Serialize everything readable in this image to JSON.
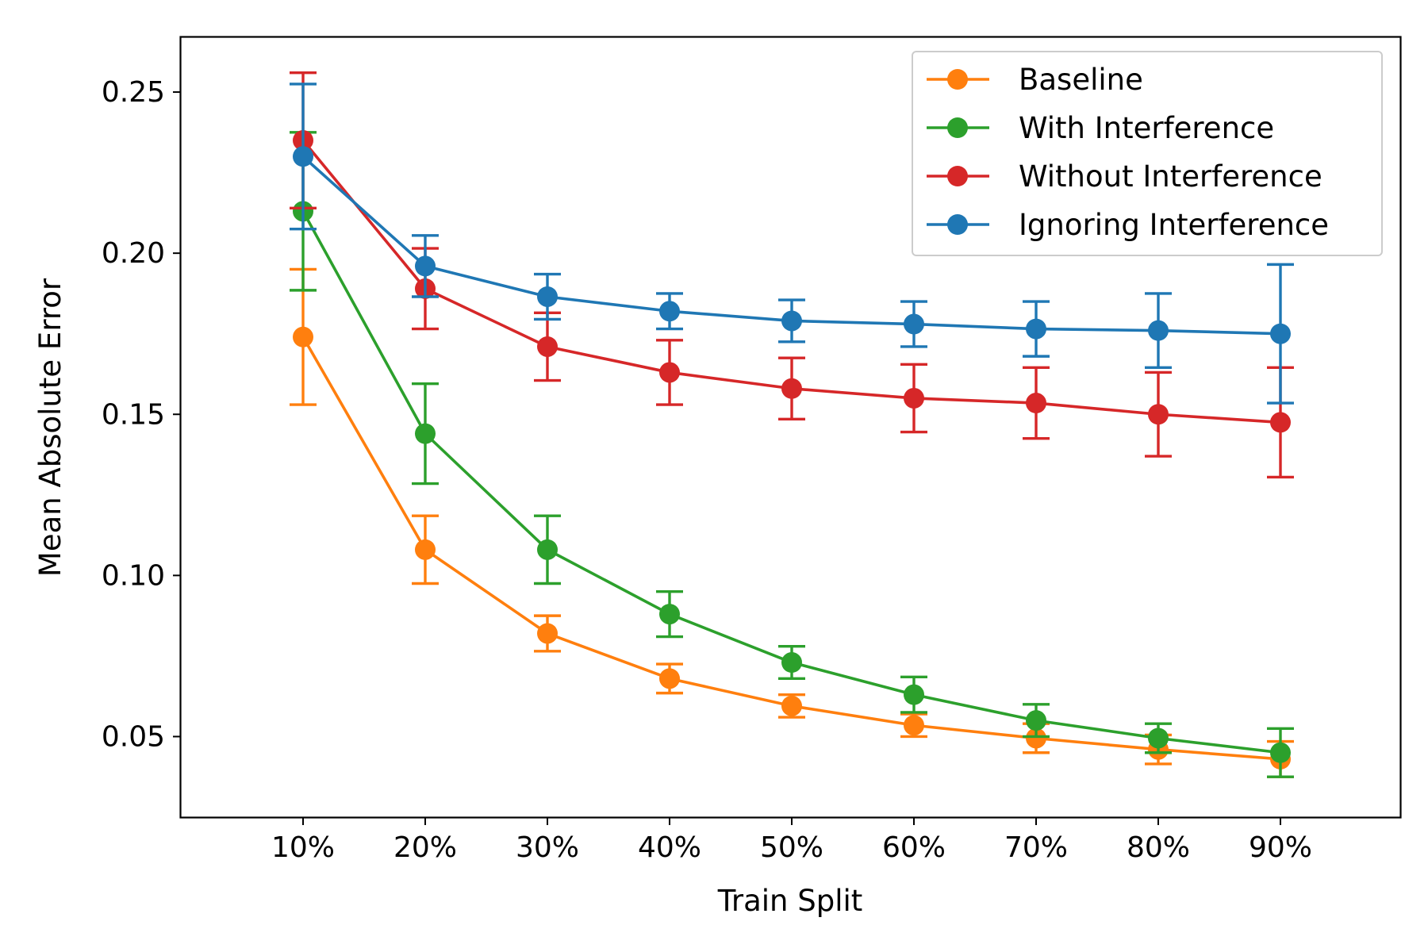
{
  "chart_data": {
    "type": "line",
    "title": "",
    "xlabel": "Train Split",
    "ylabel": "Mean Absolute Error",
    "categories": [
      "10%",
      "20%",
      "30%",
      "40%",
      "50%",
      "60%",
      "70%",
      "80%",
      "90%"
    ],
    "ylim": [
      0.025,
      0.267
    ],
    "yticks": [
      0.05,
      0.1,
      0.15,
      0.2,
      0.25
    ],
    "ytick_labels": [
      "0.05",
      "0.10",
      "0.15",
      "0.20",
      "0.25"
    ],
    "grid": false,
    "legend_position": "top-right",
    "error_bars": true,
    "series": [
      {
        "name": "Baseline",
        "color": "#ff7f0e",
        "values": [
          0.174,
          0.108,
          0.082,
          0.068,
          0.0595,
          0.0535,
          0.0495,
          0.046,
          0.043
        ],
        "errors": [
          0.021,
          0.0105,
          0.0055,
          0.0045,
          0.0035,
          0.0035,
          0.0045,
          0.0045,
          0.0055
        ]
      },
      {
        "name": "With Interference",
        "color": "#2ca02c",
        "values": [
          0.213,
          0.144,
          0.108,
          0.088,
          0.073,
          0.063,
          0.055,
          0.0495,
          0.045
        ],
        "errors": [
          0.0245,
          0.0155,
          0.0105,
          0.007,
          0.005,
          0.0055,
          0.005,
          0.0045,
          0.0075
        ]
      },
      {
        "name": "Without Interference",
        "color": "#d62728",
        "values": [
          0.235,
          0.189,
          0.171,
          0.163,
          0.158,
          0.155,
          0.1535,
          0.15,
          0.1475
        ],
        "errors": [
          0.021,
          0.0125,
          0.0105,
          0.01,
          0.0095,
          0.0105,
          0.011,
          0.013,
          0.017
        ]
      },
      {
        "name": "Ignoring Interference",
        "color": "#1f77b4",
        "values": [
          0.23,
          0.196,
          0.1865,
          0.182,
          0.179,
          0.178,
          0.1765,
          0.176,
          0.175
        ],
        "errors": [
          0.0225,
          0.0095,
          0.007,
          0.0055,
          0.0065,
          0.007,
          0.0085,
          0.0115,
          0.0215
        ]
      }
    ]
  }
}
